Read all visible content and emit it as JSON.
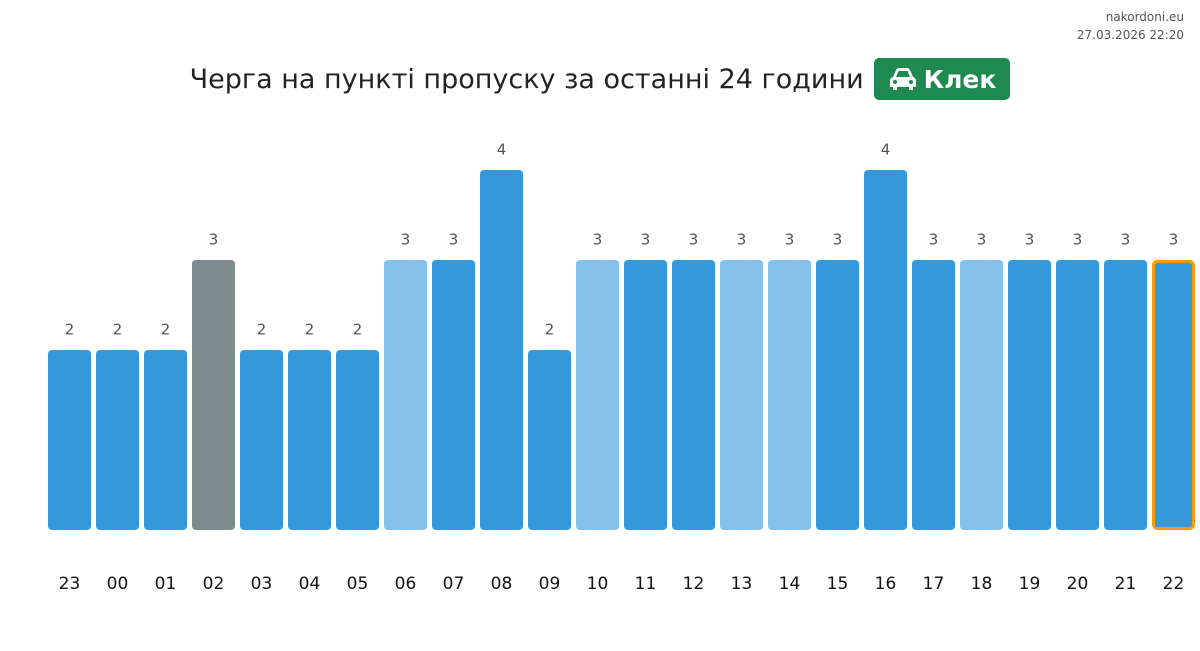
{
  "site": "nakordoni.eu",
  "timestamp": "27.03.2026 22:20",
  "chart_data": {
    "type": "bar",
    "title": "Черга на пункті пропуску за останні 24 години",
    "badge": "Клек",
    "categories": [
      "23",
      "00",
      "01",
      "02",
      "03",
      "04",
      "05",
      "06",
      "07",
      "08",
      "09",
      "10",
      "11",
      "12",
      "13",
      "14",
      "15",
      "16",
      "17",
      "18",
      "19",
      "20",
      "21",
      "22"
    ],
    "values": [
      2,
      2,
      2,
      3,
      2,
      2,
      2,
      3,
      3,
      4,
      2,
      3,
      3,
      3,
      3,
      3,
      3,
      4,
      3,
      3,
      3,
      3,
      3,
      3
    ],
    "colors": [
      "#3498db",
      "#3498db",
      "#3498db",
      "#7f8c8d",
      "#3498db",
      "#3498db",
      "#3498db",
      "#85c1e9",
      "#3498db",
      "#3498db",
      "#3498db",
      "#85c1e9",
      "#3498db",
      "#3498db",
      "#85c1e9",
      "#85c1e9",
      "#3498db",
      "#3498db",
      "#3498db",
      "#85c1e9",
      "#3498db",
      "#3498db",
      "#3498db",
      "#3498db"
    ],
    "outline_colors": [
      null,
      null,
      null,
      null,
      null,
      null,
      null,
      null,
      null,
      null,
      null,
      null,
      null,
      null,
      null,
      null,
      null,
      null,
      null,
      null,
      null,
      null,
      null,
      "#f39c12"
    ],
    "badge_color": "#1e8a4f"
  }
}
